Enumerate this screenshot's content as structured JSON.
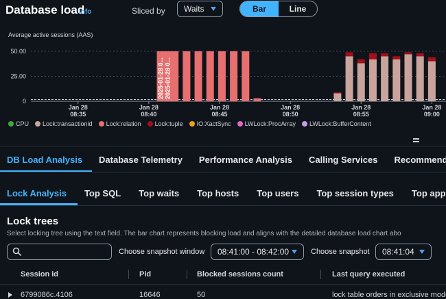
{
  "header": {
    "title": "Database load",
    "info": "Info",
    "sliced_by_label": "Sliced by",
    "sliced_by_value": "Waits",
    "toggle": [
      "Bar",
      "Line"
    ],
    "toggle_selected": "Bar"
  },
  "chart_data": {
    "type": "bar",
    "ylabel": "Average active sessions (AAS)",
    "yticks": [
      "50.00",
      "25.00",
      "0"
    ],
    "ylim": [
      0,
      52
    ],
    "x_ticks": [
      {
        "date": "Jan 28",
        "time": "08:35"
      },
      {
        "date": "Jan 28",
        "time": "08:40"
      },
      {
        "date": "Jan 28",
        "time": "08:45"
      },
      {
        "date": "Jan 28",
        "time": "08:50"
      },
      {
        "date": "Jan 28",
        "time": "08:55"
      },
      {
        "date": "Jan 28",
        "time": "09:00"
      }
    ],
    "stack_order": [
      "Lock:transactionid",
      "Lock:relation",
      "Lock:tuple"
    ],
    "bars": [
      {
        "x": "08:40:50",
        "Lock:relation": 50
      },
      {
        "x": "08:41:20",
        "Lock:relation": 50
      },
      {
        "x": "08:41:50",
        "Lock:relation": 50
      },
      {
        "x": "08:42:40",
        "Lock:relation": 50
      },
      {
        "x": "08:43:30",
        "Lock:relation": 50
      },
      {
        "x": "08:44:20",
        "Lock:relation": 50
      },
      {
        "x": "08:45:10",
        "Lock:relation": 50
      },
      {
        "x": "08:46:00",
        "Lock:relation": 50
      },
      {
        "x": "08:46:50",
        "Lock:relation": 50
      },
      {
        "x": "08:47:40",
        "Lock:relation": 3
      },
      {
        "x": "08:53:20",
        "Lock:transactionid": 8,
        "Lock:tuple": 1
      },
      {
        "x": "08:54:10",
        "Lock:transactionid": 45,
        "Lock:tuple": 4
      },
      {
        "x": "08:55:00",
        "Lock:transactionid": 38,
        "Lock:tuple": 4
      },
      {
        "x": "08:55:50",
        "Lock:transactionid": 42,
        "Lock:tuple": 6
      },
      {
        "x": "08:56:40",
        "Lock:transactionid": 45,
        "Lock:tuple": 3
      },
      {
        "x": "08:57:30",
        "Lock:transactionid": 42,
        "Lock:tuple": 3
      },
      {
        "x": "08:58:20",
        "Lock:transactionid": 47,
        "Lock:tuple": 2
      },
      {
        "x": "08:59:10",
        "Lock:transactionid": 45,
        "Lock:tuple": 3
      },
      {
        "x": "09:00:00",
        "Lock:transactionid": 40,
        "Lock:tuple": 4
      }
    ],
    "highlight_labels": [
      "2025-01-28 0...",
      "2025-01-28 0..."
    ],
    "legend": [
      {
        "name": "CPU",
        "color": "#3ea83c"
      },
      {
        "name": "Lock:transactionid",
        "color": "#c9a49c"
      },
      {
        "name": "Lock:relation",
        "color": "#e76f6f"
      },
      {
        "name": "Lock:tuple",
        "color": "#a30f1b"
      },
      {
        "name": "IO:XactSync",
        "color": "#e8a21d"
      },
      {
        "name": "LWLock:ProcArray",
        "color": "#e267c8"
      },
      {
        "name": "LWLock:BufferContent",
        "color": "#c79ae8"
      }
    ]
  },
  "main_tabs": [
    "DB Load Analysis",
    "Database Telemetry",
    "Performance Analysis",
    "Calling Services",
    "Recommenda"
  ],
  "sub_tabs": [
    "Lock Analysis",
    "Top SQL",
    "Top waits",
    "Top hosts",
    "Top users",
    "Top session types",
    "Top appli"
  ],
  "lock_trees": {
    "title": "Lock trees",
    "description": "Select locking tree using the text field. The bar chart represents blocking load and aligns with the detailed database load chart abo",
    "snapshot_window_label": "Choose snapshot window",
    "snapshot_window_value": "08:41:00 - 08:42:00",
    "snapshot_label": "Choose snapshot",
    "snapshot_value": "08:41:04",
    "columns": [
      "Session id",
      "Pid",
      "Blocked sessions count",
      "Last query executed"
    ],
    "row": {
      "session": "6799086c.4106",
      "pid": "16646",
      "count": "50",
      "query": "lock table orders in exclusive mode"
    }
  },
  "colors": {
    "accent": "#42b4ff",
    "background": "#0f141a"
  }
}
